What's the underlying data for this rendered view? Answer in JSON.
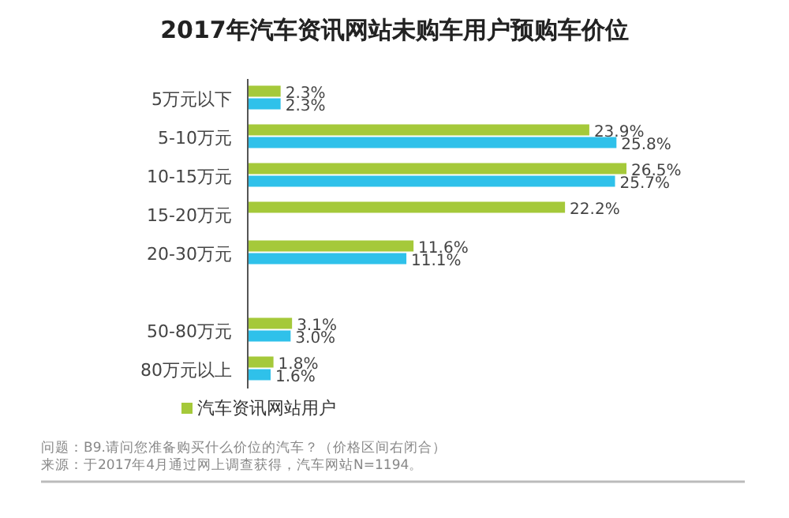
{
  "chart_data": {
    "type": "bar",
    "orientation": "horizontal",
    "title": "2017年汽车资讯网站未购车用户预购车价位",
    "categories": [
      "5万元以下",
      "5-10万元",
      "10-15万元",
      "15-20万元",
      "20-30万元",
      null,
      "50-80万元",
      "80万元以上"
    ],
    "series": [
      {
        "name": "汽车资讯网站用户",
        "color": "#a5c93a",
        "values": [
          2.3,
          23.9,
          26.5,
          22.2,
          11.6,
          null,
          3.1,
          1.8
        ],
        "value_labels": [
          "2.3%",
          "23.9%",
          "26.5%",
          "22.2%",
          "11.6%",
          null,
          "3.1%",
          "1.8%"
        ]
      },
      {
        "color": "#2fc1ea",
        "values": [
          2.3,
          25.8,
          25.7,
          null,
          11.1,
          null,
          3.0,
          1.6
        ],
        "value_labels": [
          "2.3%",
          "25.8%",
          "25.7%",
          null,
          "11.1%",
          null,
          "3.0%",
          "1.6%"
        ]
      }
    ],
    "legend": "bottom",
    "annotations": [
      "问题：B9.请问您准备购买什么价位的汽车？（价格区间右闭合）",
      "来源：于2017年4月通过网上调查获得，汽车网站N=1194。"
    ]
  }
}
